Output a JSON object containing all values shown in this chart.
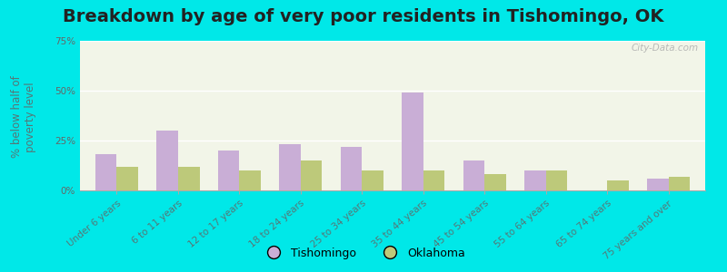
{
  "title": "Breakdown by age of very poor residents in Tishomingo, OK",
  "ylabel": "% below half of\npoverty level",
  "categories": [
    "Under 6 years",
    "6 to 11 years",
    "12 to 17 years",
    "18 to 24 years",
    "25 to 34 years",
    "35 to 44 years",
    "45 to 54 years",
    "55 to 64 years",
    "65 to 74 years",
    "75 years and over"
  ],
  "tishomingo_values": [
    18,
    30,
    20,
    23,
    22,
    49,
    15,
    10,
    0,
    6
  ],
  "oklahoma_values": [
    12,
    12,
    10,
    15,
    10,
    10,
    8,
    10,
    5,
    7
  ],
  "tishomingo_color": "#c9aed6",
  "oklahoma_color": "#bdc97a",
  "background_outer": "#00e8e8",
  "background_plot": "#f2f5e8",
  "ylim": [
    0,
    75
  ],
  "yticks": [
    0,
    25,
    50,
    75
  ],
  "ytick_labels": [
    "0%",
    "25%",
    "50%",
    "75%"
  ],
  "title_fontsize": 14,
  "axis_label_fontsize": 8.5,
  "tick_fontsize": 7.5,
  "bar_width": 0.35,
  "watermark": "City-Data.com",
  "legend_marker_color_tish": "#d4a8e0",
  "legend_marker_color_ok": "#c8d47a"
}
